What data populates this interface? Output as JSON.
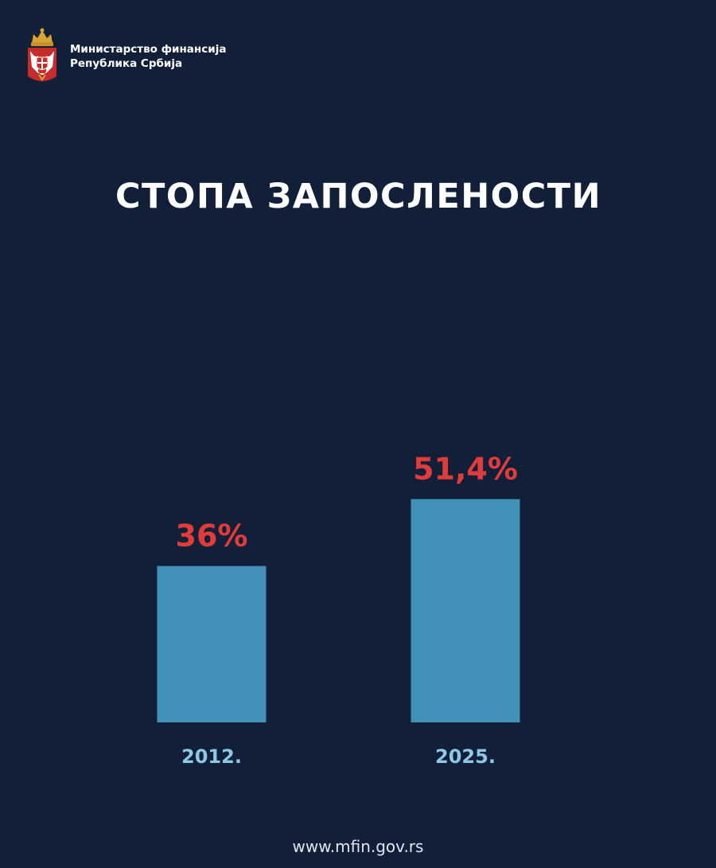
{
  "header": {
    "logo_icon": "serbian-coat-of-arms-icon",
    "ministry_line1": "Министарство финансија",
    "ministry_line2": "Република Србија"
  },
  "footer": {
    "url": "www.mfin.gov.rs"
  },
  "colors": {
    "background": "#111f38",
    "bar": "#4291b8",
    "value_label": "#e23c3a",
    "category_label": "#8fc7e6",
    "title": "#ffffff"
  },
  "chart_data": {
    "type": "bar",
    "title": "СТОПА ЗАПОСЛЕНОСТИ",
    "categories": [
      "2012.",
      "2025."
    ],
    "values": [
      36,
      51.4
    ],
    "value_labels": [
      "36%",
      "51,4%"
    ],
    "xlabel": "",
    "ylabel": "",
    "grid": false
  }
}
